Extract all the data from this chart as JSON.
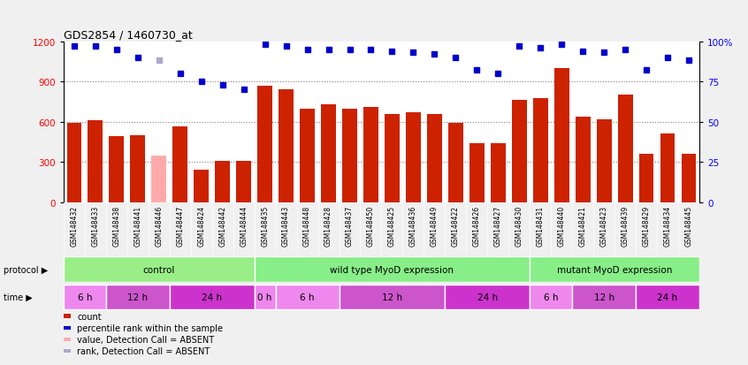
{
  "title": "GDS2854 / 1460730_at",
  "samples": [
    "GSM148432",
    "GSM148433",
    "GSM148438",
    "GSM148441",
    "GSM148446",
    "GSM148447",
    "GSM148424",
    "GSM148442",
    "GSM148444",
    "GSM148435",
    "GSM148443",
    "GSM148448",
    "GSM148428",
    "GSM148437",
    "GSM148450",
    "GSM148425",
    "GSM148436",
    "GSM148449",
    "GSM148422",
    "GSM148426",
    "GSM148427",
    "GSM148430",
    "GSM148431",
    "GSM148440",
    "GSM148421",
    "GSM148423",
    "GSM148439",
    "GSM148429",
    "GSM148434",
    "GSM148445"
  ],
  "counts": [
    590,
    610,
    490,
    500,
    350,
    565,
    240,
    305,
    305,
    870,
    840,
    700,
    730,
    700,
    710,
    660,
    670,
    660,
    590,
    440,
    440,
    760,
    775,
    1000,
    635,
    620,
    800,
    360,
    510,
    360
  ],
  "absent_flags": [
    false,
    false,
    false,
    false,
    true,
    false,
    false,
    false,
    false,
    false,
    false,
    false,
    false,
    false,
    false,
    false,
    false,
    false,
    false,
    false,
    false,
    false,
    false,
    false,
    false,
    false,
    false,
    false,
    false,
    false
  ],
  "percentile_ranks": [
    97,
    97,
    95,
    90,
    88,
    80,
    75,
    73,
    70,
    98,
    97,
    95,
    95,
    95,
    95,
    94,
    93,
    92,
    90,
    82,
    80,
    97,
    96,
    98,
    94,
    93,
    95,
    82,
    90,
    88
  ],
  "absent_rank_flags": [
    false,
    false,
    false,
    false,
    true,
    false,
    false,
    false,
    false,
    false,
    false,
    false,
    false,
    false,
    false,
    false,
    false,
    false,
    false,
    false,
    false,
    false,
    false,
    false,
    false,
    false,
    false,
    false,
    false,
    false
  ],
  "ylim_left": [
    0,
    1200
  ],
  "ylim_right": [
    0,
    100
  ],
  "yticks_left": [
    0,
    300,
    600,
    900,
    1200
  ],
  "yticks_right": [
    0,
    25,
    50,
    75,
    100
  ],
  "bar_color": "#cc2200",
  "absent_bar_color": "#ffaaaa",
  "dot_color": "#0000cc",
  "absent_dot_color": "#aaaacc",
  "protocol_groups": [
    {
      "label": "control",
      "start": 0,
      "end": 9,
      "color": "#99ee88"
    },
    {
      "label": "wild type MyoD expression",
      "start": 9,
      "end": 22,
      "color": "#88ee88"
    },
    {
      "label": "mutant MyoD expression",
      "start": 22,
      "end": 30,
      "color": "#88ee88"
    }
  ],
  "time_groups": [
    {
      "label": "6 h",
      "start": 0,
      "end": 2,
      "color": "#ee88ee"
    },
    {
      "label": "12 h",
      "start": 2,
      "end": 5,
      "color": "#cc55cc"
    },
    {
      "label": "24 h",
      "start": 5,
      "end": 9,
      "color": "#cc33cc"
    },
    {
      "label": "0 h",
      "start": 9,
      "end": 10,
      "color": "#ee88ee"
    },
    {
      "label": "6 h",
      "start": 10,
      "end": 13,
      "color": "#ee88ee"
    },
    {
      "label": "12 h",
      "start": 13,
      "end": 18,
      "color": "#cc55cc"
    },
    {
      "label": "24 h",
      "start": 18,
      "end": 22,
      "color": "#cc33cc"
    },
    {
      "label": "6 h",
      "start": 22,
      "end": 24,
      "color": "#ee88ee"
    },
    {
      "label": "12 h",
      "start": 24,
      "end": 27,
      "color": "#cc55cc"
    },
    {
      "label": "24 h",
      "start": 27,
      "end": 30,
      "color": "#cc33cc"
    }
  ],
  "legend_items": [
    {
      "color": "#cc2200",
      "label": "count"
    },
    {
      "color": "#0000cc",
      "label": "percentile rank within the sample"
    },
    {
      "color": "#ffaaaa",
      "label": "value, Detection Call = ABSENT"
    },
    {
      "color": "#aaaacc",
      "label": "rank, Detection Call = ABSENT"
    }
  ],
  "sample_label_bg": "#cccccc",
  "fig_bg": "#f0f0f0",
  "chart_bg": "#ffffff"
}
